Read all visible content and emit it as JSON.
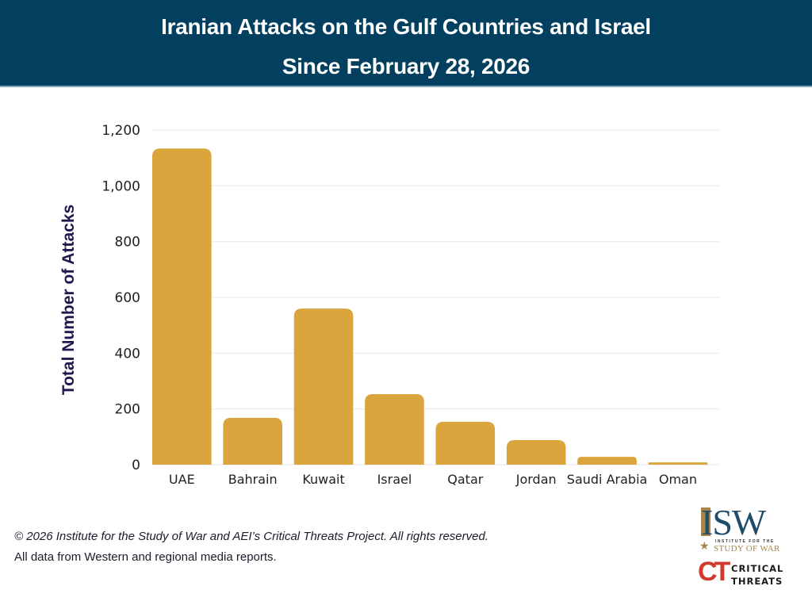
{
  "header": {
    "title_line1": "Iranian Attacks on the Gulf Countries and Israel",
    "title_line2": "Since February 28, 2026",
    "background_color": "#03405f"
  },
  "chart_data": {
    "type": "bar",
    "title": "Iranian Attacks on the Gulf Countries and Israel Since February 28, 2026",
    "xlabel": "",
    "ylabel": "Total Number of Attacks",
    "categories": [
      "UAE",
      "Bahrain",
      "Kuwait",
      "Israel",
      "Qatar",
      "Jordan",
      "Saudi Arabia",
      "Oman"
    ],
    "values": [
      1134,
      168,
      560,
      253,
      154,
      88,
      28,
      8
    ],
    "ylim": [
      0,
      1200
    ],
    "yticks": [
      0,
      200,
      400,
      600,
      800,
      1000,
      1200
    ],
    "ytick_labels": [
      "0",
      "200",
      "400",
      "600",
      "800",
      "1,000",
      "1,200"
    ],
    "grid": true,
    "legend": "none",
    "bar_color": "#d9a53c",
    "grid_color": "#ececec"
  },
  "footer": {
    "copyright": "© 2026 Institute for the Study of War and AEI’s Critical Threats Project. All rights reserved.",
    "source": "All data from Western and regional media reports."
  },
  "logos": {
    "isw": {
      "letters": "ISW",
      "subtitle_small": "INSTITUTE FOR THE",
      "subtitle_large": "STUDY OF WAR",
      "icon": "star-icon"
    },
    "critical_threats": {
      "mark": "CT",
      "line1": "CRITICAL",
      "line2": "THREATS"
    }
  }
}
